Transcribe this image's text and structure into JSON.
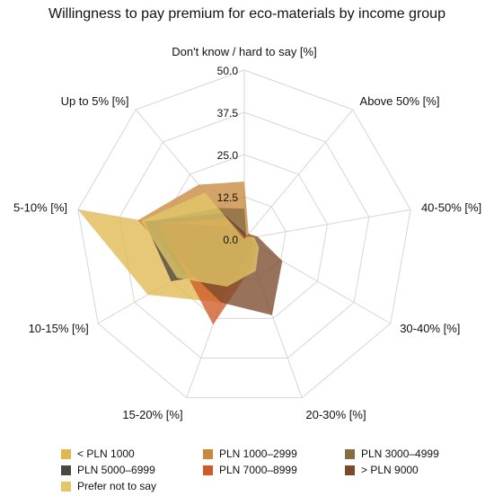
{
  "chart_data": {
    "type": "radar",
    "title": "Willingness to pay premium for eco-materials by income group",
    "axes": [
      "Don't know / hard to say [%]",
      "Above 50% [%]",
      "40-50% [%]",
      "30-40% [%]",
      "20-30% [%]",
      "15-20% [%]",
      "10-15% [%]",
      "5-10% [%]",
      "Up to 5% [%]"
    ],
    "rlim": [
      0,
      50
    ],
    "ticks": [
      "0.0",
      "12.5",
      "25.0",
      "37.5",
      "50.0"
    ],
    "tick_values": [
      0,
      12.5,
      25,
      37.5,
      50
    ],
    "grid": true,
    "legend_position": "bottom",
    "series": [
      {
        "name": "< PLN 1000",
        "color": "#e0b84f",
        "values": [
          2,
          0,
          0,
          0,
          0,
          20,
          33,
          50,
          0
        ]
      },
      {
        "name": "PLN 1000–2999",
        "color": "#c8893d",
        "values": [
          17,
          2,
          1,
          1,
          1,
          14,
          20,
          32,
          21
        ]
      },
      {
        "name": "PLN 3000–4999",
        "color": "#8a6c40",
        "values": [
          9,
          1,
          1,
          2,
          5,
          15,
          21,
          29,
          12
        ]
      },
      {
        "name": "PLN 5000–6999",
        "color": "#4a4740",
        "values": [
          2,
          1,
          2,
          3,
          4,
          10,
          25,
          30,
          10
        ]
      },
      {
        "name": "PLN 7000–8999",
        "color": "#cf5a28",
        "values": [
          1,
          1,
          2,
          4,
          8,
          27,
          20,
          26,
          8
        ]
      },
      {
        "name": "> PLN 9000",
        "color": "#7b4a2c",
        "values": [
          0,
          2,
          4,
          13,
          24,
          20,
          19,
          27,
          5
        ]
      },
      {
        "name": "Prefer not to say",
        "color": "#e2c766",
        "values": [
          0,
          1,
          3,
          5,
          10,
          15,
          23,
          31,
          18
        ]
      }
    ]
  }
}
